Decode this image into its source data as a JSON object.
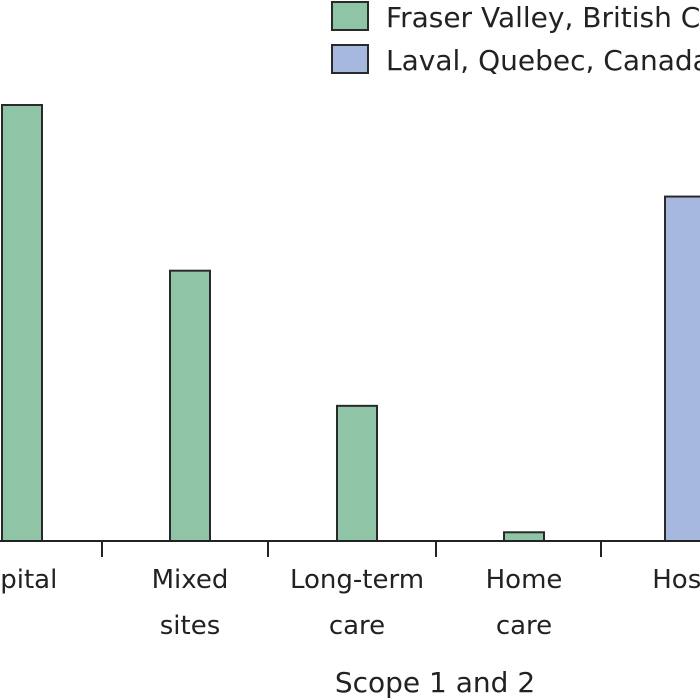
{
  "chart_data": {
    "type": "bar",
    "categories": [
      [
        "Hospital",
        ""
      ],
      [
        "Mixed",
        "sites"
      ],
      [
        "Long-term",
        "care"
      ],
      [
        "Home",
        "care"
      ],
      [
        "Hospital",
        ""
      ]
    ],
    "visible_category_text": [
      [
        "spital",
        ""
      ],
      [
        "Mixed",
        "sites"
      ],
      [
        "Long-term",
        "care"
      ],
      [
        "Home",
        "care"
      ],
      [
        "Hosp",
        ""
      ]
    ],
    "series": [
      {
        "name": "Fraser Valley, British Columbia",
        "visible_name": "Fraser Valley, British Co",
        "color": "#8fc4a7",
        "values": [
          100,
          62,
          31,
          2,
          null
        ]
      },
      {
        "name": "Laval, Quebec, Canada",
        "visible_name": "Laval, Quebec, Canada",
        "color": "#a7b8df",
        "values": [
          null,
          null,
          null,
          null,
          79
        ]
      }
    ],
    "xlabel": "Scope 1 and 2",
    "ylabel": "",
    "ylim": [
      0,
      100
    ],
    "grid": false,
    "legend_position": "top-right"
  }
}
